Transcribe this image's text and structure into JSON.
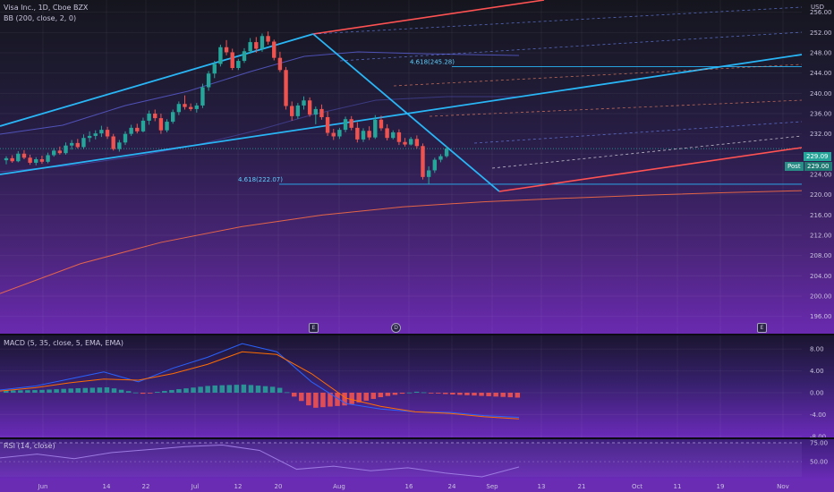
{
  "header": {
    "symbol_line": "Visa Inc., 1D, Cboe BZX",
    "bb_line": "BB (200, close, 2, 0)",
    "currency": "USD"
  },
  "macd": {
    "label": "MACD (5, 35, close, 5, EMA, EMA)"
  },
  "rsi": {
    "label": "RSI (14, close)"
  },
  "price_tags": {
    "last": "229.09",
    "post_label": "Post",
    "post_value": "229.00"
  },
  "fib": {
    "upper_label": "4.618(245.28)",
    "lower_label": "4.618(222.07)"
  },
  "events": [
    "E",
    "D",
    "E"
  ],
  "colors": {
    "up": "#26a69a",
    "down": "#ef5350",
    "bb_mid": "#ff7043",
    "bb_band": "#5b5fd6",
    "trend_blue": "#29b6f6",
    "trend_red": "#ff5252",
    "macd": "#2962ff",
    "signal": "#ff6d00"
  },
  "chart_data": {
    "type": "candlestick",
    "title": "Visa Inc., 1D, Cboe BZX",
    "y_axis": {
      "unit": "USD",
      "ticks": [
        196,
        200,
        204,
        208,
        212,
        216,
        220,
        224,
        228,
        232,
        236,
        240,
        244,
        248,
        252,
        256
      ],
      "range": [
        195,
        258
      ]
    },
    "x_axis": {
      "tick_labels": [
        "Jun",
        "14",
        "22",
        "Jul",
        "12",
        "20",
        "Aug",
        "16",
        "24",
        "Sep",
        "13",
        "21",
        "Oct",
        "11",
        "19",
        "Nov"
      ]
    },
    "candles": [
      [
        226.8,
        227.6,
        226.0,
        227.2
      ],
      [
        227.2,
        227.8,
        226.3,
        226.6
      ],
      [
        226.6,
        228.6,
        226.4,
        228.1
      ],
      [
        228.1,
        228.8,
        227.0,
        227.3
      ],
      [
        227.3,
        227.9,
        225.9,
        226.3
      ],
      [
        226.3,
        227.4,
        225.8,
        227.0
      ],
      [
        227.0,
        227.7,
        226.1,
        226.5
      ],
      [
        226.5,
        228.3,
        226.2,
        227.8
      ],
      [
        227.8,
        229.2,
        227.5,
        228.7
      ],
      [
        228.7,
        229.5,
        227.9,
        228.2
      ],
      [
        228.2,
        230.3,
        227.9,
        229.7
      ],
      [
        229.7,
        230.8,
        228.9,
        230.2
      ],
      [
        230.2,
        231.0,
        229.1,
        229.4
      ],
      [
        229.4,
        231.9,
        229.0,
        231.2
      ],
      [
        231.2,
        232.5,
        230.4,
        231.6
      ],
      [
        231.6,
        232.7,
        230.9,
        232.1
      ],
      [
        232.1,
        233.6,
        231.4,
        232.8
      ],
      [
        232.8,
        233.4,
        231.0,
        231.5
      ],
      [
        231.5,
        232.0,
        228.7,
        229.0
      ],
      [
        229.0,
        230.8,
        228.5,
        230.3
      ],
      [
        230.3,
        232.5,
        229.8,
        232.0
      ],
      [
        232.0,
        233.8,
        231.6,
        233.2
      ],
      [
        233.2,
        234.0,
        232.1,
        232.5
      ],
      [
        232.5,
        235.2,
        232.3,
        234.6
      ],
      [
        234.6,
        236.6,
        233.8,
        236.0
      ],
      [
        236.0,
        236.8,
        234.5,
        235.1
      ],
      [
        235.1,
        236.0,
        232.0,
        232.7
      ],
      [
        232.7,
        234.9,
        232.3,
        234.4
      ],
      [
        234.4,
        236.8,
        234.0,
        236.3
      ],
      [
        236.3,
        238.4,
        235.7,
        237.9
      ],
      [
        237.9,
        239.6,
        236.8,
        237.3
      ],
      [
        237.3,
        238.0,
        236.5,
        236.9
      ],
      [
        236.9,
        238.1,
        236.2,
        237.6
      ],
      [
        237.6,
        241.9,
        237.1,
        241.2
      ],
      [
        241.2,
        244.4,
        240.5,
        243.9
      ],
      [
        243.9,
        246.4,
        243.0,
        245.8
      ],
      [
        245.8,
        249.6,
        245.3,
        249.1
      ],
      [
        249.1,
        250.5,
        247.5,
        248.1
      ],
      [
        248.1,
        248.8,
        244.6,
        245.0
      ],
      [
        245.0,
        246.8,
        244.6,
        246.4
      ],
      [
        246.4,
        248.9,
        246.0,
        248.3
      ],
      [
        248.3,
        250.9,
        247.8,
        250.1
      ],
      [
        250.1,
        251.1,
        248.0,
        248.8
      ],
      [
        248.8,
        251.8,
        248.2,
        251.3
      ],
      [
        251.3,
        252.2,
        249.6,
        250.2
      ],
      [
        250.2,
        250.6,
        246.5,
        247.0
      ],
      [
        247.0,
        248.2,
        244.2,
        244.6
      ],
      [
        244.6,
        245.2,
        236.8,
        237.5
      ],
      [
        237.5,
        238.4,
        234.6,
        235.5
      ],
      [
        235.5,
        238.1,
        235.0,
        237.6
      ],
      [
        237.6,
        239.4,
        236.8,
        238.6
      ],
      [
        238.6,
        239.2,
        235.4,
        235.8
      ],
      [
        235.8,
        237.4,
        233.9,
        236.9
      ],
      [
        236.9,
        237.8,
        234.8,
        235.3
      ],
      [
        235.3,
        236.4,
        231.6,
        232.2
      ],
      [
        232.2,
        233.0,
        230.8,
        231.5
      ],
      [
        231.5,
        233.2,
        231.0,
        232.8
      ],
      [
        232.8,
        235.4,
        232.3,
        234.9
      ],
      [
        234.9,
        235.5,
        232.7,
        233.2
      ],
      [
        233.2,
        234.3,
        230.3,
        230.9
      ],
      [
        230.9,
        233.1,
        230.4,
        232.6
      ],
      [
        232.6,
        233.5,
        230.8,
        231.3
      ],
      [
        231.3,
        235.7,
        231.0,
        234.8
      ],
      [
        234.8,
        235.6,
        232.6,
        233.1
      ],
      [
        233.1,
        233.9,
        230.7,
        231.2
      ],
      [
        231.2,
        232.7,
        230.9,
        232.3
      ],
      [
        232.3,
        232.9,
        229.8,
        230.4
      ],
      [
        230.4,
        231.2,
        229.5,
        229.9
      ],
      [
        229.9,
        231.4,
        229.7,
        231.0
      ],
      [
        231.0,
        231.7,
        229.1,
        229.6
      ],
      [
        229.6,
        230.1,
        223.0,
        223.5
      ],
      [
        223.5,
        225.6,
        222.1,
        224.8
      ],
      [
        224.8,
        227.3,
        224.3,
        226.9
      ],
      [
        226.9,
        228.0,
        226.4,
        227.6
      ],
      [
        227.6,
        229.6,
        227.3,
        229.1
      ]
    ],
    "series": [
      {
        "name": "BB basis",
        "values": [
          200.5,
          206.4,
          210.6,
          213.7,
          216.0,
          217.6,
          218.6,
          219.3,
          219.9,
          220.4,
          220.8
        ]
      },
      {
        "name": "MACD",
        "values": [
          0.5,
          1.2,
          2.5,
          3.8,
          2.0,
          4.5,
          6.5,
          9.0,
          7.5,
          2.0,
          -2.0,
          -3.0,
          -3.5,
          -3.6,
          -4.2,
          -4.5
        ]
      },
      {
        "name": "Signal",
        "values": [
          0.3,
          0.9,
          1.8,
          2.5,
          2.3,
          3.5,
          5.2,
          7.5,
          7.0,
          3.5,
          -1.0,
          -2.5,
          -3.5,
          -3.8,
          -4.4,
          -4.8
        ]
      },
      {
        "name": "Histogram",
        "values": [
          0.4,
          0.5,
          0.8,
          1.0,
          -0.2,
          0.6,
          1.3,
          1.5,
          1.0,
          -2.8,
          -2.3,
          -0.8,
          0.2,
          -0.3,
          -0.6,
          -0.9
        ]
      },
      {
        "name": "RSI",
        "values": [
          55,
          60,
          54,
          62,
          66,
          70,
          72,
          65,
          40,
          44,
          38,
          42,
          35,
          30,
          43
        ]
      }
    ],
    "macd_axis": {
      "ticks": [
        "8.00",
        "4.00",
        "0.00",
        "-4.00",
        "-8.00"
      ]
    },
    "rsi_axis": {
      "ticks": [
        "75.00",
        "50.00"
      ]
    },
    "annotations": [
      "4.618(245.28)",
      "4.618(222.07)"
    ],
    "grid": true
  }
}
